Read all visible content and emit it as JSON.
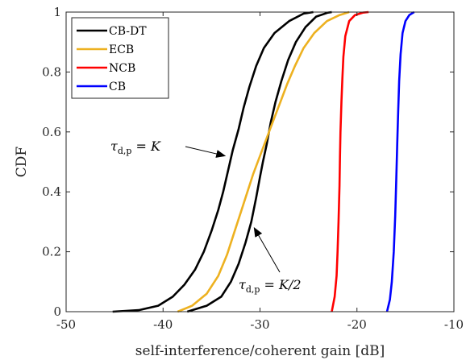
{
  "chart_data": {
    "type": "line",
    "xlabel": "self-interference/coherent gain [dB]",
    "ylabel": "CDF",
    "xlim": [
      -50,
      -10
    ],
    "ylim": [
      0,
      1
    ],
    "xticks": [
      -50,
      -40,
      -30,
      -20,
      -10
    ],
    "yticks": [
      0,
      0.2,
      0.4,
      0.6,
      0.8,
      1
    ],
    "xtick_labels": [
      "-50",
      "-40",
      "-30",
      "-20",
      "-10"
    ],
    "ytick_labels": [
      "0",
      "0.2",
      "0.4",
      "0.6",
      "0.8",
      "1"
    ],
    "grid": false,
    "legend_position": "top-left",
    "series": [
      {
        "name": "CB-DT",
        "color": "#000000",
        "x": [
          -45.2,
          -42.5,
          -40.5,
          -39.0,
          -37.8,
          -36.7,
          -35.8,
          -35.0,
          -34.3,
          -33.8,
          -33.3,
          -32.8,
          -32.2,
          -31.7,
          -31.1,
          -30.4,
          -29.6,
          -28.5,
          -27.0,
          -25.5,
          -24.5
        ],
        "y": [
          0,
          0.005,
          0.02,
          0.05,
          0.09,
          0.14,
          0.2,
          0.27,
          0.34,
          0.4,
          0.47,
          0.54,
          0.61,
          0.68,
          0.75,
          0.82,
          0.88,
          0.93,
          0.97,
          0.995,
          1
        ]
      },
      {
        "name": "CB-DT (K/2)",
        "color": "#000000",
        "x": [
          -37.5,
          -35.5,
          -34.0,
          -33.0,
          -32.2,
          -31.5,
          -30.9,
          -30.4,
          -30.0,
          -29.7,
          -29.3,
          -28.9,
          -28.4,
          -27.8,
          -27.1,
          -26.3,
          -25.3,
          -24.2,
          -23.0,
          -22.6
        ],
        "y": [
          0,
          0.02,
          0.05,
          0.1,
          0.16,
          0.23,
          0.3,
          0.38,
          0.45,
          0.5,
          0.56,
          0.63,
          0.7,
          0.77,
          0.84,
          0.9,
          0.95,
          0.985,
          0.998,
          1
        ]
      },
      {
        "name": "ECB",
        "color": "#EDB120",
        "x": [
          -38.5,
          -37.0,
          -35.5,
          -34.3,
          -33.4,
          -32.7,
          -32.0,
          -31.3,
          -30.7,
          -30.0,
          -29.3,
          -28.6,
          -27.9,
          -27.2,
          -26.4,
          -25.5,
          -24.4,
          -23.1,
          -21.8,
          -20.8
        ],
        "y": [
          0,
          0.02,
          0.06,
          0.12,
          0.19,
          0.26,
          0.33,
          0.4,
          0.46,
          0.52,
          0.58,
          0.64,
          0.7,
          0.76,
          0.82,
          0.88,
          0.93,
          0.97,
          0.99,
          1
        ]
      },
      {
        "name": "NCB",
        "color": "#FF0000",
        "x": [
          -22.6,
          -22.3,
          -22.1,
          -22.0,
          -21.9,
          -21.8,
          -21.75,
          -21.7,
          -21.6,
          -21.5,
          -21.4,
          -21.2,
          -20.8,
          -20.2,
          -19.4,
          -18.8
        ],
        "y": [
          0,
          0.05,
          0.12,
          0.2,
          0.3,
          0.42,
          0.52,
          0.6,
          0.7,
          0.78,
          0.85,
          0.92,
          0.97,
          0.99,
          0.998,
          1
        ]
      },
      {
        "name": "CB",
        "color": "#0000FF",
        "x": [
          -16.9,
          -16.6,
          -16.4,
          -16.2,
          -16.05,
          -15.95,
          -15.85,
          -15.75,
          -15.65,
          -15.5,
          -15.3,
          -15.0,
          -14.6,
          -14.1
        ],
        "y": [
          0,
          0.04,
          0.1,
          0.2,
          0.32,
          0.44,
          0.56,
          0.67,
          0.77,
          0.86,
          0.93,
          0.97,
          0.99,
          1
        ]
      }
    ],
    "legend_entries": [
      "CB-DT",
      "ECB",
      "NCB",
      "CB"
    ],
    "annotations": [
      {
        "text": "τ",
        "sub": "d,p",
        "rest": " = K",
        "arrow_to": [
          -33.6,
          0.52
        ]
      },
      {
        "text": "τ",
        "sub": "d,p",
        "rest": " = K/2",
        "arrow_to": [
          -30.6,
          0.28
        ]
      }
    ]
  }
}
